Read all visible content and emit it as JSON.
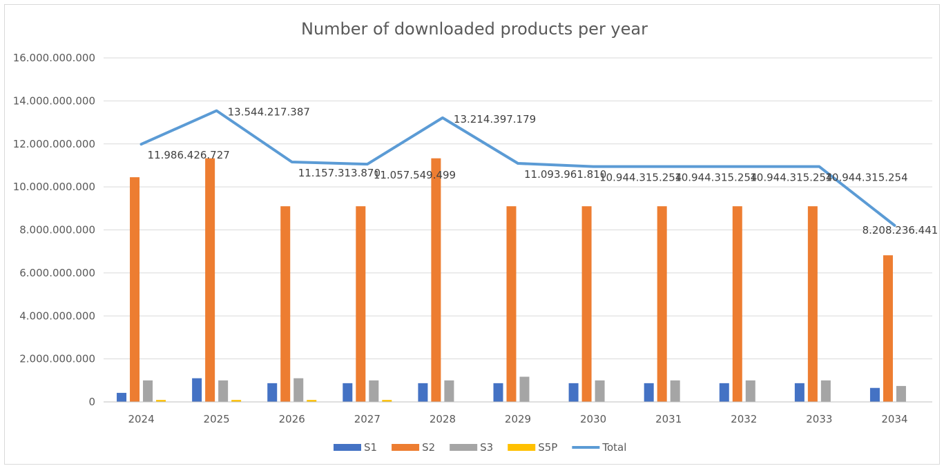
{
  "chart_data": {
    "type": "bar",
    "title": "Number of downloaded products per year",
    "xlabel": "",
    "ylabel": "",
    "categories": [
      "2024",
      "2025",
      "2026",
      "2027",
      "2028",
      "2029",
      "2030",
      "2031",
      "2032",
      "2033",
      "2034"
    ],
    "ylim": [
      0,
      16000000000
    ],
    "yticks": [
      0,
      2000000000,
      4000000000,
      6000000000,
      8000000000,
      10000000000,
      12000000000,
      14000000000,
      16000000000
    ],
    "ytick_labels": [
      "0",
      "2.000.000.000",
      "4.000.000.000",
      "6.000.000.000",
      "8.000.000.000",
      "10.000.000.000",
      "12.000.000.000",
      "14.000.000.000",
      "16.000.000.000"
    ],
    "grid": true,
    "legend_position": "bottom",
    "series": [
      {
        "name": "S1",
        "type": "bar",
        "color": "#4472C4",
        "values": [
          420000000,
          1100000000,
          870000000,
          870000000,
          870000000,
          870000000,
          870000000,
          870000000,
          870000000,
          870000000,
          650000000
        ]
      },
      {
        "name": "S2",
        "type": "bar",
        "color": "#ED7D31",
        "values": [
          10450000000,
          11330000000,
          9100000000,
          9100000000,
          11330000000,
          9100000000,
          9100000000,
          9100000000,
          9100000000,
          9100000000,
          6820000000
        ]
      },
      {
        "name": "S3",
        "type": "bar",
        "color": "#A5A5A5",
        "values": [
          1000000000,
          1000000000,
          1100000000,
          1000000000,
          1000000000,
          1170000000,
          1000000000,
          1000000000,
          1000000000,
          1000000000,
          740000000
        ]
      },
      {
        "name": "S5P",
        "type": "bar",
        "color": "#FFC000",
        "values": [
          90000000,
          90000000,
          90000000,
          90000000,
          0,
          0,
          0,
          0,
          0,
          0,
          0
        ]
      },
      {
        "name": "Total",
        "type": "line",
        "color": "#5B9BD5",
        "values": [
          11986426727,
          13544217387,
          11157313870,
          11057549499,
          13214397179,
          11093961810,
          10944315254,
          10944315254,
          10944315254,
          10944315254,
          8208236441
        ],
        "labels": [
          "11.986.426.727",
          "13.544.217.387",
          "11.157.313.870",
          "11.057.549.499",
          "13.214.397.179",
          "11.093.961.810",
          "10.944.315.254",
          "10.944.315.254",
          "10.944.315.254",
          "10.944.315.254",
          "8.208.236.441"
        ]
      }
    ]
  }
}
